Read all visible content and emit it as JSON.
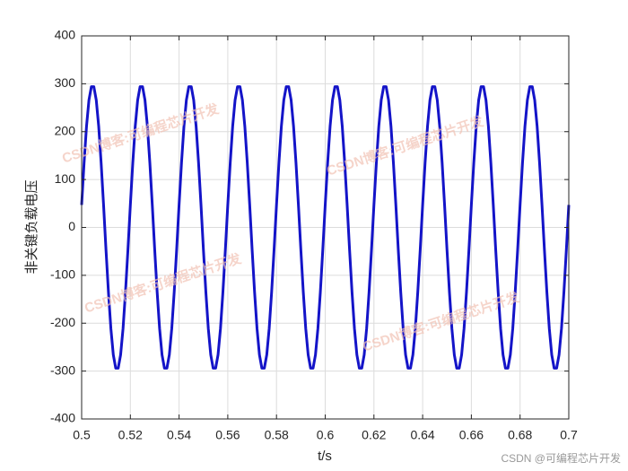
{
  "chart_data": {
    "type": "line",
    "xlabel": "t/s",
    "ylabel": "非关键负载电压",
    "watermark": "CSDN博客:可编程芯片开发",
    "credit": "CSDN @可编程芯片开发",
    "xlim": [
      0.5,
      0.7
    ],
    "ylim": [
      -400,
      400
    ],
    "xticks": [
      0.5,
      0.52,
      0.54,
      0.56,
      0.58,
      0.6,
      0.62,
      0.64,
      0.66,
      0.68,
      0.7
    ],
    "yticks": [
      -400,
      -300,
      -200,
      -100,
      0,
      100,
      200,
      300,
      400
    ],
    "grid": true,
    "x": [
      0.5,
      0.501,
      0.502,
      0.503,
      0.504,
      0.505,
      0.506,
      0.507,
      0.508,
      0.509,
      0.51,
      0.511,
      0.512,
      0.513,
      0.514,
      0.515,
      0.516,
      0.517,
      0.518,
      0.519,
      0.52,
      0.521,
      0.522,
      0.523,
      0.524,
      0.525,
      0.526,
      0.527,
      0.528,
      0.529,
      0.53,
      0.531,
      0.532,
      0.533,
      0.534,
      0.535,
      0.536,
      0.537,
      0.538,
      0.539,
      0.54,
      0.541,
      0.542,
      0.543,
      0.544,
      0.545,
      0.546,
      0.547,
      0.548,
      0.549,
      0.55,
      0.551,
      0.552,
      0.553,
      0.554,
      0.555,
      0.556,
      0.557,
      0.558,
      0.559,
      0.56,
      0.561,
      0.562,
      0.563,
      0.564,
      0.565,
      0.566,
      0.567,
      0.568,
      0.569,
      0.57,
      0.571,
      0.572,
      0.573,
      0.574,
      0.575,
      0.576,
      0.577,
      0.578,
      0.579,
      0.58,
      0.581,
      0.582,
      0.583,
      0.584,
      0.585,
      0.586,
      0.587,
      0.588,
      0.589,
      0.59,
      0.591,
      0.592,
      0.593,
      0.594,
      0.595,
      0.596,
      0.597,
      0.598,
      0.599,
      0.6,
      0.601,
      0.602,
      0.603,
      0.604,
      0.605,
      0.606,
      0.607,
      0.608,
      0.609,
      0.61,
      0.611,
      0.612,
      0.613,
      0.614,
      0.615,
      0.616,
      0.617,
      0.618,
      0.619,
      0.62,
      0.621,
      0.622,
      0.623,
      0.624,
      0.625,
      0.626,
      0.627,
      0.628,
      0.629,
      0.63,
      0.631,
      0.632,
      0.633,
      0.634,
      0.635,
      0.636,
      0.637,
      0.638,
      0.639,
      0.64,
      0.641,
      0.642,
      0.643,
      0.644,
      0.645,
      0.646,
      0.647,
      0.648,
      0.649,
      0.65,
      0.651,
      0.652,
      0.653,
      0.654,
      0.655,
      0.656,
      0.657,
      0.658,
      0.659,
      0.66,
      0.661,
      0.662,
      0.663,
      0.664,
      0.665,
      0.666,
      0.667,
      0.668,
      0.669,
      0.67,
      0.671,
      0.672,
      0.673,
      0.674,
      0.675,
      0.676,
      0.677,
      0.678,
      0.679,
      0.68,
      0.681,
      0.682,
      0.683,
      0.684,
      0.685,
      0.686,
      0.687,
      0.688,
      0.689,
      0.69,
      0.691,
      0.692,
      0.693,
      0.694,
      0.695,
      0.696,
      0.697,
      0.698,
      0.699,
      0.7
    ],
    "series": [
      {
        "color": "#1414c8",
        "values": [
          47,
          135,
          211,
          266,
          294,
          294,
          266,
          211,
          135,
          47,
          -47,
          -135,
          -211,
          -266,
          -294,
          -294,
          -266,
          -211,
          -135,
          -47,
          47,
          135,
          211,
          266,
          294,
          294,
          266,
          211,
          135,
          47,
          -47,
          -135,
          -211,
          -266,
          -294,
          -294,
          -266,
          -211,
          -135,
          -47,
          47,
          135,
          211,
          266,
          294,
          294,
          266,
          211,
          135,
          47,
          -47,
          -135,
          -211,
          -266,
          -294,
          -294,
          -266,
          -211,
          -135,
          -47,
          47,
          135,
          211,
          266,
          294,
          294,
          266,
          211,
          135,
          47,
          -47,
          -135,
          -211,
          -266,
          -294,
          -294,
          -266,
          -211,
          -135,
          -47,
          47,
          135,
          211,
          266,
          294,
          294,
          266,
          211,
          135,
          47,
          -47,
          -135,
          -211,
          -266,
          -294,
          -294,
          -266,
          -211,
          -135,
          -47,
          47,
          135,
          211,
          266,
          294,
          294,
          266,
          211,
          135,
          47,
          -47,
          -135,
          -211,
          -266,
          -294,
          -294,
          -266,
          -211,
          -135,
          -47,
          47,
          135,
          211,
          266,
          294,
          294,
          266,
          211,
          135,
          47,
          -47,
          -135,
          -211,
          -266,
          -294,
          -294,
          -266,
          -211,
          -135,
          -47,
          47,
          135,
          211,
          266,
          294,
          294,
          266,
          211,
          135,
          47,
          -47,
          -135,
          -211,
          -266,
          -294,
          -294,
          -266,
          -211,
          -135,
          -47,
          47,
          135,
          211,
          266,
          294,
          294,
          266,
          211,
          135,
          47,
          -47,
          -135,
          -211,
          -266,
          -294,
          -294,
          -266,
          -211,
          -135,
          -47,
          47,
          135,
          211,
          266,
          294,
          294,
          266,
          211,
          135,
          47,
          -47,
          -135,
          -211,
          -266,
          -294,
          -294,
          -266,
          -211,
          -135,
          -47,
          47
        ]
      }
    ]
  }
}
